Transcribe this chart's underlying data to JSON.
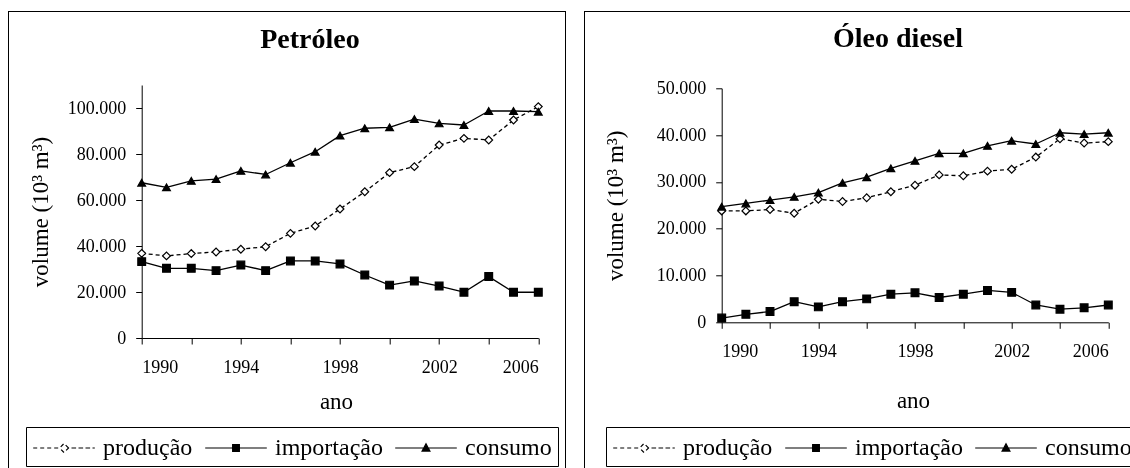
{
  "chart_data": [
    {
      "type": "line",
      "title": "Petróleo",
      "xlabel": "ano",
      "ylabel": "volume (10³ m³)",
      "legend": "bottom",
      "x": [
        1990,
        1991,
        1992,
        1993,
        1994,
        1995,
        1996,
        1997,
        1998,
        1999,
        2000,
        2001,
        2002,
        2003,
        2004,
        2005,
        2006
      ],
      "series": [
        {
          "name": "produção",
          "color": "#000000",
          "marker": "diamond",
          "line_style": "dashed",
          "values": [
            36800,
            35700,
            36700,
            37400,
            38600,
            39700,
            45500,
            48700,
            56100,
            63600,
            71900,
            74500,
            83900,
            86800,
            86100,
            94800,
            100600
          ]
        },
        {
          "name": "importação",
          "color": "#000000",
          "marker": "square",
          "line_style": "solid",
          "values": [
            33200,
            30300,
            30300,
            29300,
            31700,
            29300,
            33500,
            33500,
            32200,
            27400,
            23000,
            24800,
            22600,
            19900,
            26700,
            19900,
            19900
          ]
        },
        {
          "name": "consumo",
          "color": "#000000",
          "marker": "triangle",
          "line_style": "solid",
          "values": [
            67500,
            65500,
            68300,
            69100,
            72700,
            71100,
            76200,
            81000,
            88000,
            91200,
            91600,
            95200,
            93300,
            92600,
            98700,
            98700,
            98400
          ]
        }
      ],
      "xlim": [
        1990,
        2006
      ],
      "xticks": [
        1990,
        {
          "value": 1992,
          "label": null
        },
        1994,
        {
          "value": 1996,
          "label": null
        },
        1998,
        {
          "value": 2000,
          "label": null
        },
        2002,
        {
          "value": 2004,
          "label": null
        },
        2006
      ],
      "ylim": [
        0,
        110000
      ],
      "yticks": [
        0,
        {
          "value": 20000,
          "label": "20.000"
        },
        {
          "value": 40000,
          "label": "40.000"
        },
        {
          "value": 60000,
          "label": "60.000"
        },
        {
          "value": 80000,
          "label": "80.000"
        },
        {
          "value": 100000,
          "label": "100.000"
        }
      ]
    },
    {
      "type": "line",
      "title": "Óleo diesel",
      "xlabel": "ano",
      "ylabel": "volume (10³ m³)",
      "legend": "bottom",
      "x": [
        1990,
        1991,
        1992,
        1993,
        1994,
        1995,
        1996,
        1997,
        1998,
        1999,
        2000,
        2001,
        2002,
        2003,
        2004,
        2005,
        2006
      ],
      "series": [
        {
          "name": "produção",
          "color": "#000000",
          "marker": "diamond",
          "line_style": "dashed",
          "values": [
            23800,
            23800,
            24100,
            23300,
            26300,
            25800,
            26600,
            27900,
            29300,
            31500,
            31300,
            32300,
            32700,
            35300,
            39200,
            38300,
            38600
          ]
        },
        {
          "name": "importação",
          "color": "#000000",
          "marker": "square",
          "line_style": "solid",
          "values": [
            900,
            1700,
            2300,
            4400,
            3300,
            4400,
            5000,
            6000,
            6300,
            5300,
            6000,
            6800,
            6400,
            3700,
            2800,
            3100,
            3700
          ]
        },
        {
          "name": "consumo",
          "color": "#000000",
          "marker": "triangle",
          "line_style": "solid",
          "values": [
            24700,
            25400,
            26100,
            26800,
            27700,
            29800,
            31000,
            32900,
            34500,
            36100,
            36100,
            37700,
            38800,
            38100,
            40500,
            40200,
            40500
          ]
        }
      ],
      "xlim": [
        1990,
        2006
      ],
      "xticks": [
        1990,
        {
          "value": 1992,
          "label": null
        },
        1994,
        {
          "value": 1996,
          "label": null
        },
        1998,
        {
          "value": 2000,
          "label": null
        },
        2002,
        {
          "value": 2004,
          "label": null
        },
        2006
      ],
      "ylim": [
        0,
        50000
      ],
      "yticks": [
        0,
        {
          "value": 10000,
          "label": "10.000"
        },
        {
          "value": 20000,
          "label": "20.000"
        },
        {
          "value": 30000,
          "label": "30.000"
        },
        {
          "value": 40000,
          "label": "40.000"
        },
        {
          "value": 50000,
          "label": "50.000"
        }
      ]
    }
  ]
}
